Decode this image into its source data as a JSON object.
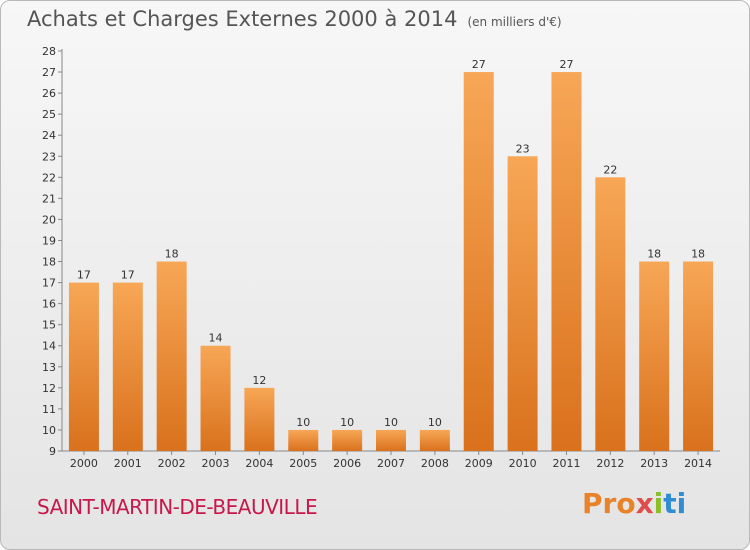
{
  "header": {
    "title": "Achats et Charges Externes 2000 à 2014",
    "unit": "(en milliers d'€)"
  },
  "footer": {
    "commune": "SAINT-MARTIN-DE-BEAUVILLE",
    "brand_parts": [
      "Pro",
      "x",
      "i",
      "ti"
    ]
  },
  "colors": {
    "bar_top": "#f7a756",
    "bar_bottom": "#d9711d",
    "title": "#555555",
    "commune": "#c8174a"
  },
  "chart_data": {
    "type": "bar",
    "title": "Achats et Charges Externes 2000 à 2014",
    "subtitle": "(en milliers d'€)",
    "categories": [
      "2000",
      "2001",
      "2002",
      "2003",
      "2004",
      "2005",
      "2006",
      "2007",
      "2008",
      "2009",
      "2010",
      "2011",
      "2012",
      "2013",
      "2014"
    ],
    "values": [
      17,
      17,
      18,
      14,
      12,
      10,
      10,
      10,
      10,
      27,
      23,
      27,
      22,
      18,
      18
    ],
    "ylim": [
      9,
      28
    ],
    "yticks": [
      9,
      10,
      11,
      12,
      13,
      14,
      15,
      16,
      17,
      18,
      19,
      20,
      21,
      22,
      23,
      24,
      25,
      26,
      27,
      28
    ],
    "grid": false,
    "data_labels": true
  }
}
